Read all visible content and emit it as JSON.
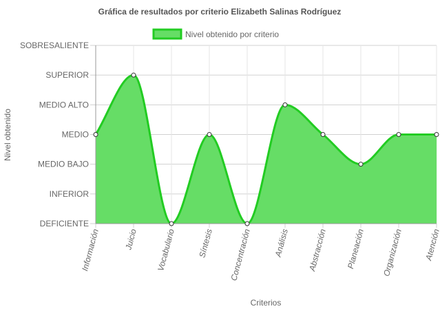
{
  "colors": {
    "fill": "#66dd66",
    "stroke": "#22cc22",
    "grid": "#d0d0d0",
    "axis": "#999999",
    "point_fill": "#ffffff",
    "point_stroke": "#333333"
  },
  "chart_data": {
    "type": "area",
    "title": "Gráfica de resultados por criterio Elizabeth Salinas Rodríguez",
    "xlabel": "Criterios",
    "ylabel": "Nivel obtenido",
    "levels": [
      "DEFICIENTE",
      "INFERIOR",
      "MEDIO BAJO",
      "MEDIO",
      "MEDIO ALTO",
      "SUPERIOR",
      "SOBRESALIENTE"
    ],
    "ylim": [
      1,
      7
    ],
    "categories": [
      "Información",
      "Juicio",
      "Vocabulario",
      "Síntesis",
      "Concentración",
      "Análisis",
      "Abstracción",
      "Planeación",
      "Organización",
      "Atención"
    ],
    "series": [
      {
        "name": "Nivel obtenido por criterio",
        "values": [
          4,
          6,
          1,
          4,
          1,
          5,
          4,
          3,
          4,
          4
        ]
      }
    ],
    "grid": true,
    "legend_position": "top"
  }
}
